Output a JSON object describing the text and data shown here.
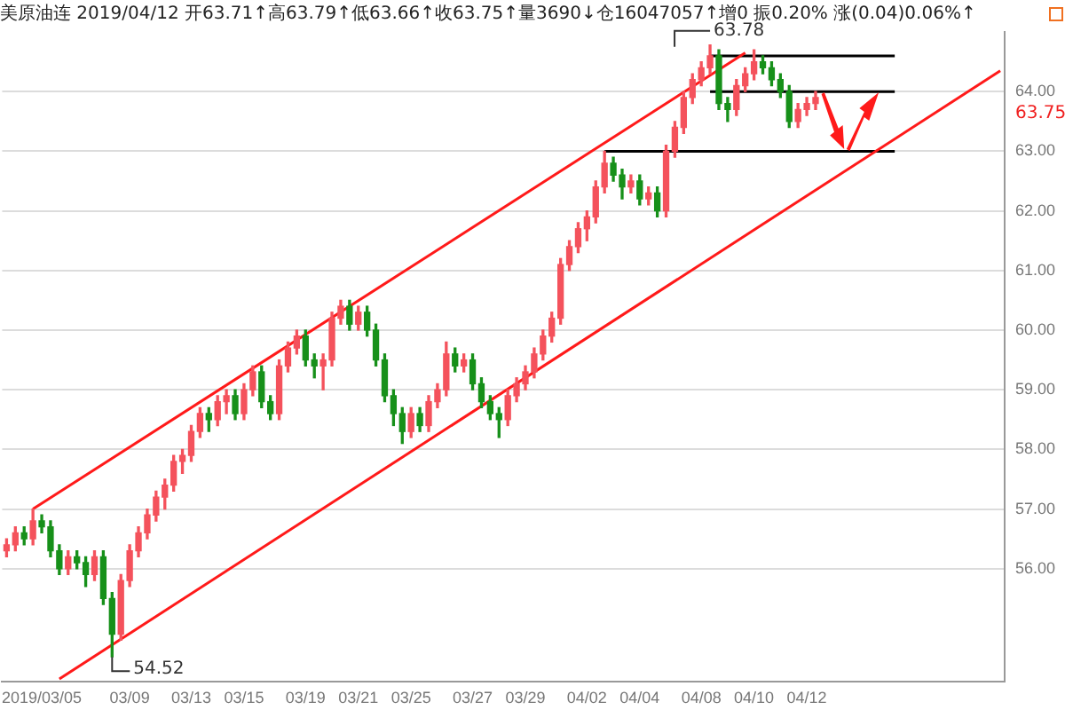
{
  "chart_data": {
    "type": "candlestick",
    "title": "美原油连 2019/04/12 开63.71↑高63.79↑低63.66↑收63.75↑量3690↓仓16047057↑增0 振0.20% 涨(0.04)0.06%↑",
    "categories": [
      null,
      null,
      null,
      null,
      "2019/03/05",
      null,
      null,
      null,
      null,
      null,
      null,
      null,
      null,
      null,
      "03/09",
      null,
      null,
      null,
      null,
      null,
      null,
      "03/13",
      null,
      null,
      null,
      null,
      null,
      "03/15",
      null,
      null,
      null,
      null,
      null,
      null,
      "03/19",
      null,
      null,
      null,
      null,
      null,
      "03/21",
      null,
      null,
      null,
      null,
      null,
      "03/25",
      null,
      null,
      null,
      null,
      null,
      null,
      "03/27",
      null,
      null,
      null,
      null,
      null,
      "03/29",
      null,
      null,
      null,
      null,
      null,
      null,
      "04/02",
      null,
      null,
      null,
      null,
      null,
      "04/04",
      null,
      null,
      null,
      null,
      null,
      null,
      "04/08",
      null,
      null,
      null,
      null,
      null,
      "04/10",
      null,
      null,
      null,
      null,
      null,
      "04/12",
      null,
      null,
      null,
      null,
      null,
      null,
      null,
      null,
      null,
      null,
      null,
      null,
      null,
      null,
      null,
      null,
      null,
      null,
      null,
      null,
      null,
      null
    ],
    "ohlc": [
      [
        56.3,
        56.5,
        56.2,
        56.4
      ],
      [
        56.4,
        56.7,
        56.3,
        56.6
      ],
      [
        56.6,
        56.7,
        56.4,
        56.5
      ],
      [
        56.5,
        57.0,
        56.4,
        56.8
      ],
      [
        56.8,
        56.9,
        56.6,
        56.7
      ],
      [
        56.7,
        56.8,
        56.2,
        56.3
      ],
      [
        56.3,
        56.4,
        55.9,
        56.0
      ],
      [
        56.0,
        56.3,
        55.9,
        56.2
      ],
      [
        56.2,
        56.3,
        56.0,
        56.1
      ],
      [
        56.1,
        56.2,
        55.7,
        55.9
      ],
      [
        55.9,
        56.3,
        55.8,
        56.2
      ],
      [
        56.2,
        56.3,
        55.4,
        55.5
      ],
      [
        55.5,
        55.6,
        54.52,
        54.9
      ],
      [
        54.9,
        55.9,
        54.8,
        55.8
      ],
      [
        55.8,
        56.4,
        55.7,
        56.3
      ],
      [
        56.3,
        56.7,
        56.2,
        56.6
      ],
      [
        56.6,
        57.0,
        56.5,
        56.9
      ],
      [
        56.9,
        57.3,
        56.8,
        57.2
      ],
      [
        57.2,
        57.5,
        57.0,
        57.4
      ],
      [
        57.4,
        57.9,
        57.3,
        57.8
      ],
      [
        57.8,
        58.0,
        57.6,
        57.9
      ],
      [
        57.9,
        58.4,
        57.8,
        58.3
      ],
      [
        58.3,
        58.7,
        58.2,
        58.6
      ],
      [
        58.6,
        58.7,
        58.3,
        58.5
      ],
      [
        58.5,
        58.9,
        58.4,
        58.8
      ],
      [
        58.8,
        59.0,
        58.6,
        58.9
      ],
      [
        58.9,
        59.0,
        58.5,
        58.6
      ],
      [
        58.6,
        59.1,
        58.5,
        59.0
      ],
      [
        59.0,
        59.4,
        58.9,
        59.3
      ],
      [
        59.3,
        59.4,
        58.7,
        58.8
      ],
      [
        58.8,
        58.9,
        58.5,
        58.6
      ],
      [
        58.6,
        59.5,
        58.5,
        59.4
      ],
      [
        59.4,
        59.8,
        59.3,
        59.7
      ],
      [
        59.7,
        60.0,
        59.6,
        59.9
      ],
      [
        59.9,
        60.0,
        59.4,
        59.5
      ],
      [
        59.5,
        59.6,
        59.2,
        59.4
      ],
      [
        59.4,
        59.6,
        59.0,
        59.5
      ],
      [
        59.5,
        60.3,
        59.4,
        60.2
      ],
      [
        60.2,
        60.5,
        60.1,
        60.4
      ],
      [
        60.4,
        60.5,
        60.0,
        60.1
      ],
      [
        60.1,
        60.4,
        60.0,
        60.3
      ],
      [
        60.3,
        60.4,
        59.9,
        60.0
      ],
      [
        60.0,
        60.1,
        59.4,
        59.5
      ],
      [
        59.5,
        59.6,
        58.8,
        58.9
      ],
      [
        58.9,
        59.0,
        58.4,
        58.6
      ],
      [
        58.6,
        58.7,
        58.1,
        58.3
      ],
      [
        58.3,
        58.7,
        58.2,
        58.6
      ],
      [
        58.6,
        58.7,
        58.3,
        58.4
      ],
      [
        58.4,
        58.9,
        58.3,
        58.8
      ],
      [
        58.8,
        59.1,
        58.7,
        59.0
      ],
      [
        59.0,
        59.8,
        58.9,
        59.6
      ],
      [
        59.6,
        59.7,
        59.3,
        59.4
      ],
      [
        59.4,
        59.6,
        59.3,
        59.5
      ],
      [
        59.5,
        59.6,
        59.0,
        59.1
      ],
      [
        59.1,
        59.2,
        58.7,
        58.8
      ],
      [
        58.8,
        58.9,
        58.5,
        58.6
      ],
      [
        58.6,
        58.7,
        58.2,
        58.5
      ],
      [
        58.5,
        59.0,
        58.4,
        58.9
      ],
      [
        58.9,
        59.2,
        58.8,
        59.1
      ],
      [
        59.1,
        59.4,
        59.0,
        59.3
      ],
      [
        59.3,
        59.7,
        59.2,
        59.6
      ],
      [
        59.6,
        60.0,
        59.5,
        59.9
      ],
      [
        59.9,
        60.3,
        59.8,
        60.2
      ],
      [
        60.2,
        61.2,
        60.1,
        61.1
      ],
      [
        61.1,
        61.5,
        61.0,
        61.4
      ],
      [
        61.4,
        61.8,
        61.3,
        61.7
      ],
      [
        61.7,
        62.0,
        61.5,
        61.9
      ],
      [
        61.9,
        62.5,
        61.8,
        62.4
      ],
      [
        62.4,
        63.0,
        62.3,
        62.8
      ],
      [
        62.8,
        62.9,
        62.5,
        62.6
      ],
      [
        62.6,
        62.7,
        62.2,
        62.4
      ],
      [
        62.4,
        62.6,
        62.3,
        62.5
      ],
      [
        62.5,
        62.6,
        62.1,
        62.2
      ],
      [
        62.2,
        62.4,
        62.1,
        62.3
      ],
      [
        62.3,
        62.4,
        61.9,
        62.0
      ],
      [
        62.0,
        63.1,
        61.9,
        63.0
      ],
      [
        63.0,
        63.5,
        62.9,
        63.4
      ],
      [
        63.4,
        64.0,
        63.3,
        63.9
      ],
      [
        63.9,
        64.3,
        63.8,
        64.2
      ],
      [
        64.2,
        64.5,
        64.1,
        64.4
      ],
      [
        64.4,
        64.78,
        64.3,
        64.6
      ],
      [
        64.6,
        64.7,
        63.7,
        63.8
      ],
      [
        63.8,
        63.9,
        63.5,
        63.7
      ],
      [
        63.7,
        64.2,
        63.6,
        64.1
      ],
      [
        64.1,
        64.4,
        64.0,
        64.3
      ],
      [
        64.3,
        64.7,
        64.2,
        64.5
      ],
      [
        64.5,
        64.6,
        64.3,
        64.4
      ],
      [
        64.4,
        64.5,
        64.1,
        64.2
      ],
      [
        64.2,
        64.3,
        63.9,
        64.0
      ],
      [
        64.0,
        64.1,
        63.4,
        63.5
      ],
      [
        63.5,
        63.8,
        63.4,
        63.7
      ],
      [
        63.7,
        63.9,
        63.6,
        63.8
      ],
      [
        63.8,
        64.0,
        63.7,
        63.9
      ],
      null,
      null,
      null,
      null,
      null,
      null,
      null,
      null,
      null,
      null,
      null,
      null,
      null,
      null,
      null,
      null,
      null,
      null,
      null,
      null,
      null
    ],
    "series": [
      {
        "type": "line",
        "color": "#ff1a1a",
        "values": [
          null,
          null,
          null,
          57.0,
          null,
          null,
          null,
          null,
          null,
          null,
          null,
          null,
          null,
          null,
          null,
          null,
          null,
          null,
          null,
          null,
          null,
          null,
          null,
          null,
          null,
          null,
          null,
          null,
          null,
          null,
          null,
          null,
          null,
          null,
          null,
          null,
          null,
          null,
          null,
          null,
          null,
          null,
          null,
          null,
          null,
          null,
          null,
          null,
          null,
          null,
          null,
          null,
          null,
          null,
          null,
          null,
          null,
          null,
          null,
          null,
          null,
          null,
          null,
          null,
          null,
          null,
          null,
          null,
          null,
          null,
          null,
          null,
          null,
          null,
          null,
          null,
          null,
          null,
          null,
          null,
          null,
          null,
          null,
          null,
          64.65,
          null,
          null,
          null,
          null,
          null,
          null,
          null,
          null,
          null,
          null,
          null,
          null,
          null,
          null,
          null,
          null,
          null,
          null,
          null,
          null,
          null,
          null,
          null,
          null,
          null,
          null,
          null,
          null,
          null
        ]
      },
      {
        "type": "line",
        "color": "#ff1a1a",
        "values": [
          null,
          null,
          null,
          null,
          null,
          null,
          54.15,
          null,
          null,
          null,
          null,
          null,
          null,
          null,
          null,
          null,
          null,
          null,
          null,
          null,
          null,
          null,
          null,
          null,
          null,
          null,
          null,
          null,
          null,
          null,
          null,
          null,
          null,
          null,
          null,
          null,
          null,
          null,
          null,
          null,
          null,
          null,
          null,
          null,
          null,
          null,
          null,
          null,
          null,
          null,
          null,
          null,
          null,
          null,
          null,
          null,
          null,
          null,
          null,
          null,
          null,
          null,
          null,
          null,
          null,
          null,
          null,
          null,
          null,
          null,
          null,
          null,
          null,
          null,
          null,
          null,
          null,
          null,
          null,
          null,
          null,
          null,
          null,
          null,
          null,
          null,
          null,
          null,
          null,
          null,
          null,
          null,
          null,
          null,
          null,
          null,
          null,
          null,
          null,
          null,
          null,
          null,
          null,
          null,
          null,
          null,
          null,
          null,
          null,
          null,
          null,
          null,
          null,
          64.35
        ]
      },
      {
        "type": "line",
        "color": "#000000",
        "values": [
          null,
          null,
          null,
          null,
          null,
          null,
          null,
          null,
          null,
          null,
          null,
          null,
          null,
          null,
          null,
          null,
          null,
          null,
          null,
          null,
          null,
          null,
          null,
          null,
          null,
          null,
          null,
          null,
          null,
          null,
          null,
          null,
          null,
          null,
          null,
          null,
          null,
          null,
          null,
          null,
          null,
          null,
          null,
          null,
          null,
          null,
          null,
          null,
          null,
          null,
          null,
          null,
          null,
          null,
          null,
          null,
          null,
          null,
          null,
          null,
          null,
          null,
          null,
          null,
          null,
          null,
          null,
          null,
          null,
          null,
          null,
          null,
          null,
          null,
          null,
          null,
          null,
          null,
          null,
          null,
          64.6,
          null,
          null,
          null,
          null,
          null,
          null,
          null,
          null,
          null,
          null,
          null,
          null,
          null,
          null,
          null,
          null,
          null,
          null,
          null,
          null,
          64.6,
          null,
          null,
          null,
          null,
          null,
          null,
          null,
          null,
          null,
          null,
          null,
          null
        ]
      },
      {
        "type": "line",
        "color": "#000000",
        "values": [
          null,
          null,
          null,
          null,
          null,
          null,
          null,
          null,
          null,
          null,
          null,
          null,
          null,
          null,
          null,
          null,
          null,
          null,
          null,
          null,
          null,
          null,
          null,
          null,
          null,
          null,
          null,
          null,
          null,
          null,
          null,
          null,
          null,
          null,
          null,
          null,
          null,
          null,
          null,
          null,
          null,
          null,
          null,
          null,
          null,
          null,
          null,
          null,
          null,
          null,
          null,
          null,
          null,
          null,
          null,
          null,
          null,
          null,
          null,
          null,
          null,
          null,
          null,
          null,
          null,
          null,
          null,
          null,
          null,
          null,
          null,
          null,
          null,
          null,
          null,
          null,
          null,
          null,
          null,
          null,
          64.0,
          null,
          null,
          null,
          null,
          null,
          null,
          null,
          null,
          null,
          null,
          null,
          null,
          null,
          null,
          null,
          null,
          null,
          null,
          null,
          null,
          64.0,
          null,
          null,
          null,
          null,
          null,
          null,
          null,
          null,
          null,
          null,
          null,
          null
        ]
      },
      {
        "type": "line",
        "color": "#000000",
        "values": [
          null,
          null,
          null,
          null,
          null,
          null,
          null,
          null,
          null,
          null,
          null,
          null,
          null,
          null,
          null,
          null,
          null,
          null,
          null,
          null,
          null,
          null,
          null,
          null,
          null,
          null,
          null,
          null,
          null,
          null,
          null,
          null,
          null,
          null,
          null,
          null,
          null,
          null,
          null,
          null,
          null,
          null,
          null,
          null,
          null,
          null,
          null,
          null,
          null,
          null,
          null,
          null,
          null,
          null,
          null,
          null,
          null,
          null,
          null,
          null,
          null,
          null,
          null,
          null,
          null,
          null,
          null,
          null,
          63.0,
          null,
          null,
          null,
          null,
          null,
          null,
          null,
          null,
          null,
          null,
          null,
          null,
          null,
          null,
          null,
          null,
          null,
          null,
          null,
          null,
          null,
          null,
          null,
          null,
          null,
          null,
          null,
          null,
          null,
          null,
          null,
          null,
          63.0,
          null,
          null,
          null,
          null,
          null,
          null,
          null,
          null,
          null,
          null,
          null,
          null
        ]
      }
    ],
    "ylim": [
      54.1,
      65.0
    ],
    "yticks": [
      {
        "value": 56,
        "label": "56.00"
      },
      {
        "value": 57,
        "label": "57.00"
      },
      {
        "value": 58,
        "label": "58.00"
      },
      {
        "value": 59,
        "label": "59.00"
      },
      {
        "value": 60,
        "label": "60.00"
      },
      {
        "value": 61,
        "label": "61.00"
      },
      {
        "value": 62,
        "label": "62.00"
      },
      {
        "value": 63,
        "label": "63.00"
      },
      {
        "value": 64,
        "label": "64.00"
      }
    ],
    "grid": "y",
    "annotations": [
      "54.52",
      "63.78",
      "63.75"
    ]
  }
}
